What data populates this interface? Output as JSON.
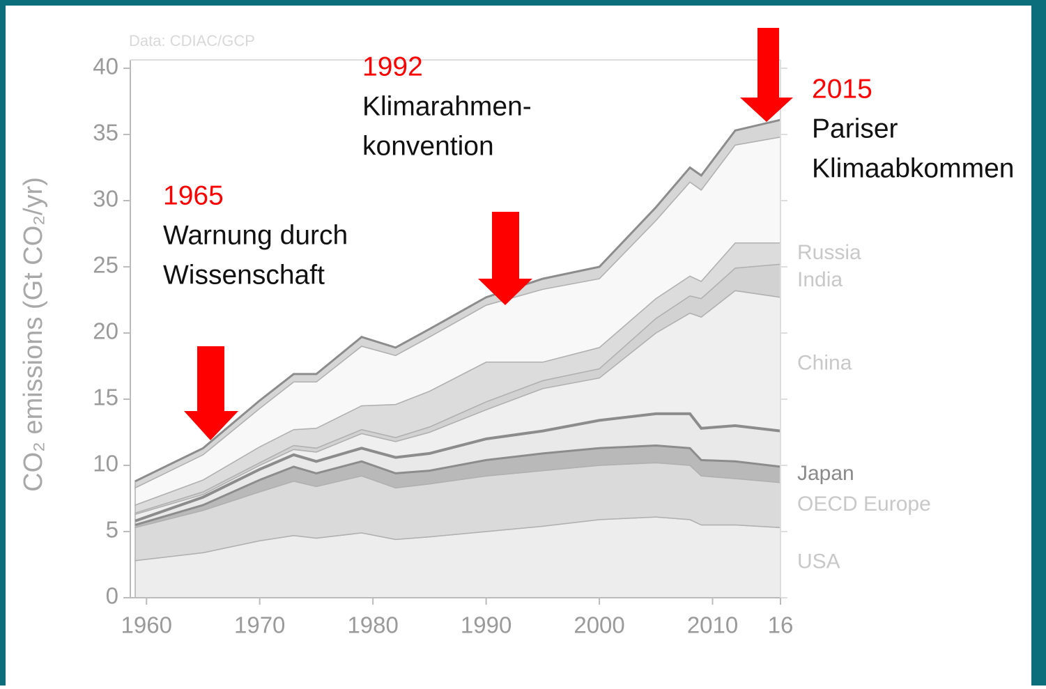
{
  "chart_data": {
    "type": "stacked-area",
    "source": "Data: CDIAC/GCP",
    "y_label": "CO₂ emissions (Gt CO₂/yr)",
    "x": [
      1959,
      1965,
      1970,
      1973,
      1975,
      1979,
      1982,
      1985,
      1990,
      1995,
      2000,
      2005,
      2008,
      2009,
      2012,
      2016
    ],
    "xlim": [
      1959,
      2016
    ],
    "xticks": [
      1960,
      1970,
      1980,
      1990,
      2000,
      2010,
      {
        "value": 2016,
        "label": "16"
      }
    ],
    "ylim": [
      0,
      40
    ],
    "yticks": [
      0,
      5,
      10,
      15,
      20,
      25,
      30,
      35,
      40
    ],
    "series": [
      {
        "name": "USA",
        "color": "#ededed",
        "values": [
          2.8,
          3.4,
          4.3,
          4.7,
          4.5,
          4.9,
          4.4,
          4.6,
          5.0,
          5.4,
          5.9,
          6.1,
          5.9,
          5.5,
          5.5,
          5.3
        ]
      },
      {
        "name": "OECD Europe",
        "color": "#dadada",
        "values": [
          2.5,
          3.2,
          3.7,
          4.1,
          3.9,
          4.3,
          3.9,
          4.0,
          4.2,
          4.2,
          4.1,
          4.1,
          4.1,
          3.7,
          3.5,
          3.4
        ]
      },
      {
        "name": "Japan",
        "color": "#b9b9b9",
        "values": [
          0.2,
          0.4,
          0.9,
          1.1,
          1.0,
          1.1,
          1.1,
          1.0,
          1.2,
          1.3,
          1.3,
          1.3,
          1.3,
          1.2,
          1.3,
          1.2
        ]
      },
      {
        "color": "#e9e9e9",
        "values": [
          0.3,
          0.6,
          0.8,
          0.9,
          0.9,
          1.0,
          1.2,
          1.3,
          1.6,
          1.7,
          2.1,
          2.4,
          2.6,
          2.4,
          2.7,
          2.7
        ]
      },
      {
        "name": "China",
        "color": "#efefef",
        "values": [
          0.5,
          0.2,
          0.3,
          0.4,
          0.7,
          1.1,
          1.2,
          1.6,
          2.2,
          3.2,
          3.2,
          6.1,
          7.6,
          8.4,
          10.2,
          10.1
        ]
      },
      {
        "name": "India",
        "color": "#d2d2d2",
        "values": [
          0.1,
          0.2,
          0.2,
          0.3,
          0.3,
          0.3,
          0.3,
          0.4,
          0.6,
          0.6,
          0.7,
          1.1,
          1.3,
          1.4,
          1.7,
          2.5
        ]
      },
      {
        "name": "Russia",
        "color": "#dcdcdc",
        "values": [
          0.6,
          0.9,
          1.2,
          1.2,
          1.5,
          1.8,
          2.5,
          2.7,
          3.0,
          1.4,
          1.6,
          1.5,
          1.5,
          1.3,
          1.9,
          1.6
        ]
      },
      {
        "color": "#f8f8f8",
        "values": [
          1.3,
          1.9,
          2.9,
          3.6,
          3.5,
          4.5,
          3.7,
          4.1,
          4.3,
          5.5,
          5.2,
          5.9,
          7.1,
          6.9,
          7.4,
          8.0
        ]
      },
      {
        "color": "#d6d6d6",
        "values": [
          0.5,
          0.5,
          0.6,
          0.6,
          0.6,
          0.7,
          0.6,
          0.6,
          0.6,
          0.8,
          0.9,
          1.0,
          1.1,
          1.1,
          1.1,
          1.3
        ]
      }
    ],
    "annotations": [
      {
        "year": "1965",
        "lines": [
          "Warnung durch",
          "Wissenschaft"
        ]
      },
      {
        "year": "1992",
        "lines": [
          "Klimarahmen-",
          "konvention"
        ]
      },
      {
        "year": "2015",
        "lines": [
          "Pariser",
          "Klimaabkommen"
        ]
      }
    ]
  }
}
